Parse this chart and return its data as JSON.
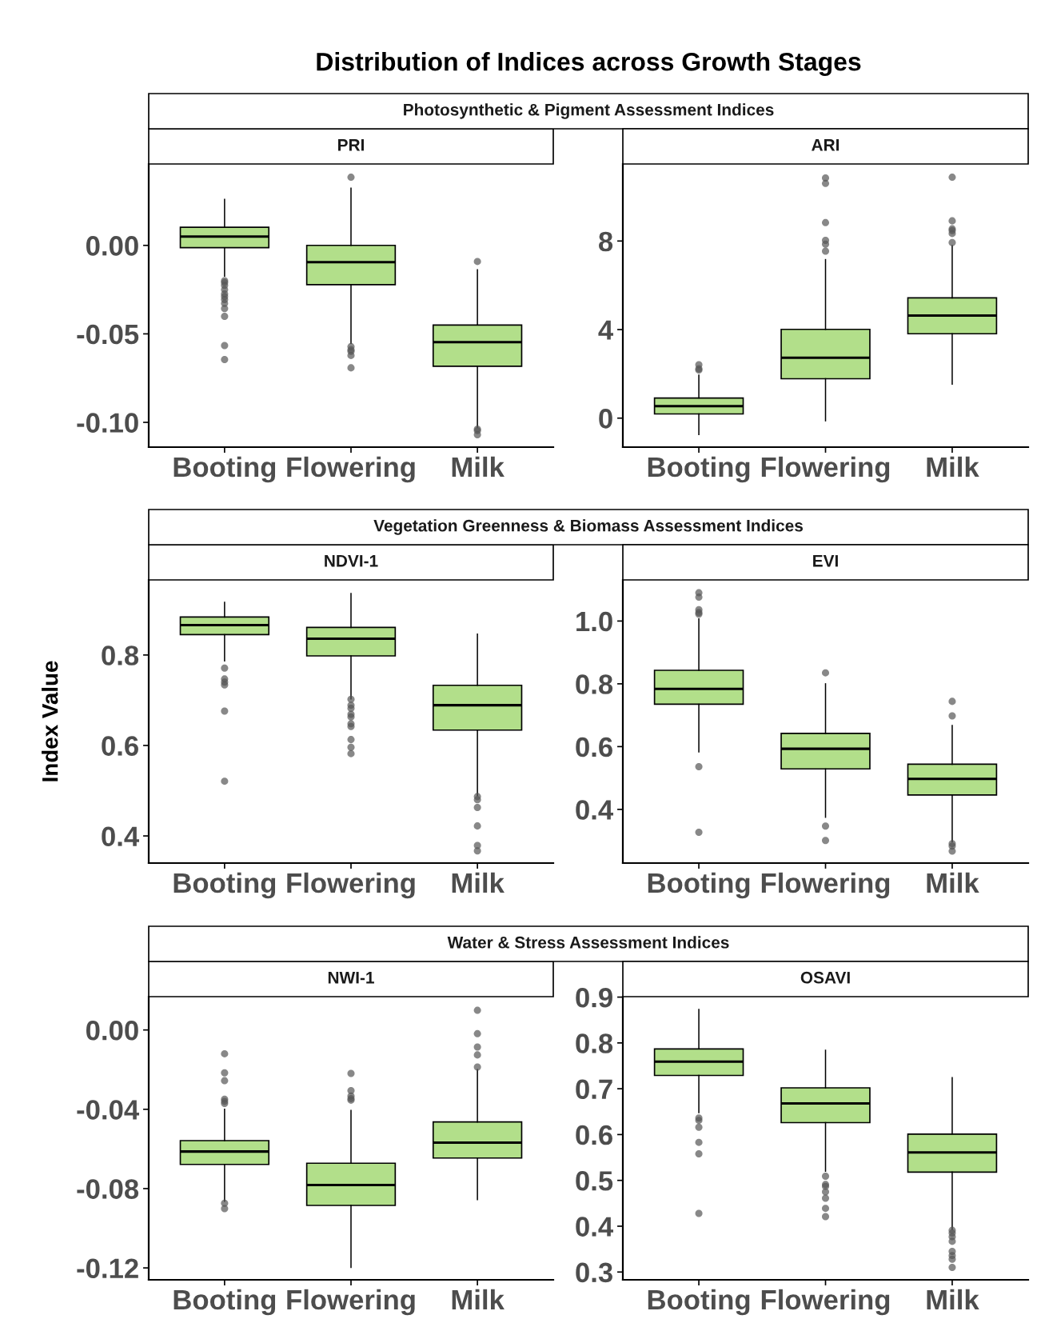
{
  "chart_data": [
    {
      "type": "box",
      "title": "PRI",
      "subtitle": "Photosynthetic & Pigment Assessment Indices",
      "annotations": [
        "Distribution of Indices across Growth Stages"
      ],
      "color": "#b2df8a",
      "categories": [
        "Booting",
        "Flowering",
        "Milk"
      ],
      "ylim": [
        -0.114,
        0.046
      ],
      "yticks": [
        {
          "value": -0.1,
          "label": "-0.10"
        },
        {
          "value": -0.05,
          "label": "-0.05"
        },
        {
          "value": 0.0,
          "label": "0.00"
        }
      ],
      "boxes": [
        {
          "low": -0.0174,
          "q1": -0.0013,
          "median": 0.005,
          "q3": 0.0102,
          "high": 0.026,
          "outliers": [
            -0.02,
            -0.021,
            -0.0226,
            -0.025,
            -0.0274,
            -0.0289,
            -0.0306,
            -0.0328,
            -0.0357,
            -0.0401,
            -0.0566,
            -0.0645
          ]
        },
        {
          "low": -0.0554,
          "q1": -0.0222,
          "median": -0.0095,
          "q3": 0.0,
          "high": 0.0323,
          "outliers": [
            0.0385,
            -0.0572,
            -0.059,
            -0.0599,
            -0.0622,
            -0.0692
          ]
        },
        {
          "low": -0.1029,
          "q1": -0.0683,
          "median": -0.0547,
          "q3": -0.045,
          "high": -0.0138,
          "outliers": [
            -0.0091,
            -0.1038,
            -0.1047,
            -0.107
          ]
        }
      ]
    },
    {
      "type": "box",
      "title": "ARI",
      "color": "#b2df8a",
      "categories": [
        "Booting",
        "Flowering",
        "Milk"
      ],
      "ylim": [
        -1.31,
        11.48
      ],
      "yticks": [
        0,
        4,
        8
      ],
      "boxes": [
        {
          "low": -0.74,
          "q1": 0.19,
          "median": 0.54,
          "q3": 0.91,
          "high": 1.94,
          "outliers": [
            2.41,
            2.23,
            2.17
          ]
        },
        {
          "low": -0.12,
          "q1": 1.78,
          "median": 2.73,
          "q3": 4.01,
          "high": 7.16,
          "outliers": [
            10.85,
            10.6,
            8.83,
            8.03,
            7.86,
            7.54
          ]
        },
        {
          "low": 1.54,
          "q1": 3.81,
          "median": 4.63,
          "q3": 5.43,
          "high": 7.79,
          "outliers": [
            10.88,
            8.91,
            8.55,
            8.47,
            8.34,
            7.93
          ]
        }
      ]
    },
    {
      "type": "box",
      "title": "NDVI-1",
      "subtitle": "Vegetation Greenness & Biomass Assessment Indices",
      "ylabel": "Index Value",
      "color": "#b2df8a",
      "categories": [
        "Booting",
        "Flowering",
        "Milk"
      ],
      "ylim": [
        0.34,
        0.966
      ],
      "yticks": [
        0.4,
        0.6,
        0.8
      ],
      "boxes": [
        {
          "low": 0.787,
          "q1": 0.845,
          "median": 0.866,
          "q3": 0.884,
          "high": 0.9165,
          "outliers": [
            0.771,
            0.747,
            0.74,
            0.734,
            0.676,
            0.521
          ]
        },
        {
          "low": 0.703,
          "q1": 0.798,
          "median": 0.836,
          "q3": 0.861,
          "high": 0.936,
          "outliers": [
            0.702,
            0.689,
            0.682,
            0.669,
            0.663,
            0.648,
            0.642,
            0.613,
            0.596,
            0.582
          ]
        },
        {
          "low": 0.489,
          "q1": 0.634,
          "median": 0.689,
          "q3": 0.733,
          "high": 0.846,
          "outliers": [
            0.487,
            0.48,
            0.463,
            0.422,
            0.379,
            0.367
          ]
        }
      ]
    },
    {
      "type": "box",
      "title": "EVI",
      "color": "#b2df8a",
      "categories": [
        "Booting",
        "Flowering",
        "Milk"
      ],
      "ylim": [
        0.229,
        1.131
      ],
      "yticks": [
        0.4,
        0.6,
        0.8,
        {
          "value": 1.0,
          "label": "1.0"
        }
      ],
      "boxes": [
        {
          "low": 0.583,
          "q1": 0.735,
          "median": 0.784,
          "q3": 0.843,
          "high": 1.007,
          "outliers": [
            1.09,
            1.076,
            1.036,
            1.027,
            1.022,
            0.536,
            0.327
          ]
        },
        {
          "low": 0.375,
          "q1": 0.529,
          "median": 0.593,
          "q3": 0.642,
          "high": 0.8,
          "outliers": [
            0.835,
            0.347,
            0.301
          ]
        },
        {
          "low": 0.297,
          "q1": 0.446,
          "median": 0.497,
          "q3": 0.544,
          "high": 0.667,
          "outliers": [
            0.744,
            0.698,
            0.291,
            0.283,
            0.267
          ]
        }
      ]
    },
    {
      "type": "box",
      "title": "NWI-1",
      "subtitle": "Water & Stress Assessment Indices",
      "color": "#b2df8a",
      "categories": [
        "Booting",
        "Flowering",
        "Milk"
      ],
      "ylim": [
        -0.126,
        0.0168
      ],
      "yticks": [
        {
          "value": -0.12,
          "label": "-0.12"
        },
        {
          "value": -0.08,
          "label": "-0.08"
        },
        {
          "value": -0.04,
          "label": "-0.04"
        },
        {
          "value": 0.0,
          "label": "0.00"
        }
      ],
      "boxes": [
        {
          "low": -0.0864,
          "q1": -0.0678,
          "median": -0.0613,
          "q3": -0.0558,
          "high": -0.04,
          "outliers": [
            -0.012,
            -0.0216,
            -0.0256,
            -0.0349,
            -0.036,
            -0.0371,
            -0.0874,
            -0.0901
          ]
        },
        {
          "low": -0.1197,
          "q1": -0.0885,
          "median": -0.0782,
          "q3": -0.0672,
          "high": -0.0406,
          "outliers": [
            -0.0219,
            -0.0306,
            -0.0333,
            -0.0346,
            -0.0354
          ]
        },
        {
          "low": -0.0856,
          "q1": -0.0646,
          "median": -0.0568,
          "q3": -0.0464,
          "high": -0.02,
          "outliers": [
            0.0099,
            -0.0019,
            -0.0086,
            -0.0126,
            -0.0187
          ]
        }
      ]
    },
    {
      "type": "box",
      "title": "OSAVI",
      "color": "#b2df8a",
      "categories": [
        "Booting",
        "Flowering",
        "Milk"
      ],
      "ylim": [
        0.283,
        0.901
      ],
      "yticks": [
        0.3,
        0.4,
        0.5,
        0.6,
        0.7,
        0.8,
        0.9
      ],
      "boxes": [
        {
          "low": 0.648,
          "q1": 0.729,
          "median": 0.759,
          "q3": 0.787,
          "high": 0.873,
          "outliers": [
            0.636,
            0.631,
            0.616,
            0.583,
            0.558,
            0.428
          ]
        },
        {
          "low": 0.52,
          "q1": 0.626,
          "median": 0.668,
          "q3": 0.702,
          "high": 0.784,
          "outliers": [
            0.509,
            0.491,
            0.487,
            0.475,
            0.461,
            0.439,
            0.421
          ]
        },
        {
          "low": 0.393,
          "q1": 0.518,
          "median": 0.561,
          "q3": 0.601,
          "high": 0.724,
          "outliers": [
            0.391,
            0.385,
            0.377,
            0.367,
            0.345,
            0.336,
            0.328,
            0.31
          ]
        }
      ]
    }
  ]
}
